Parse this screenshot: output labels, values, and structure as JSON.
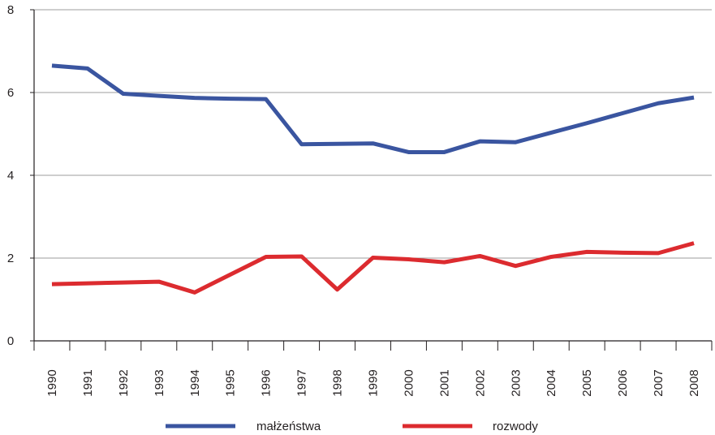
{
  "chart_data": {
    "type": "line",
    "title": "",
    "xlabel": "",
    "ylabel": "",
    "x": [
      "1990",
      "1991",
      "1992",
      "1993",
      "1994",
      "1995",
      "1996",
      "1997",
      "1998",
      "1999",
      "2000",
      "2001",
      "2002",
      "2003",
      "2004",
      "2005",
      "2006",
      "2007",
      "2008"
    ],
    "ylim": [
      0,
      8
    ],
    "yticks": [
      "0",
      "2",
      "4",
      "6",
      "8"
    ],
    "grid": true,
    "legend_position": "bottom",
    "series": [
      {
        "name": "małżeństwa",
        "color": "#3a55a0",
        "values": [
          6.65,
          6.58,
          5.97,
          5.92,
          5.87,
          5.85,
          5.84,
          4.75,
          4.76,
          4.77,
          4.56,
          4.56,
          4.82,
          4.8,
          5.03,
          5.26,
          5.5,
          5.74,
          5.88
        ]
      },
      {
        "name": "rozwody",
        "color": "#dc2b2f",
        "values": [
          1.37,
          1.39,
          1.41,
          1.43,
          1.17,
          1.6,
          2.03,
          2.04,
          1.24,
          2.01,
          1.97,
          1.9,
          2.05,
          1.81,
          2.03,
          2.15,
          2.13,
          2.12,
          2.36
        ]
      }
    ]
  }
}
